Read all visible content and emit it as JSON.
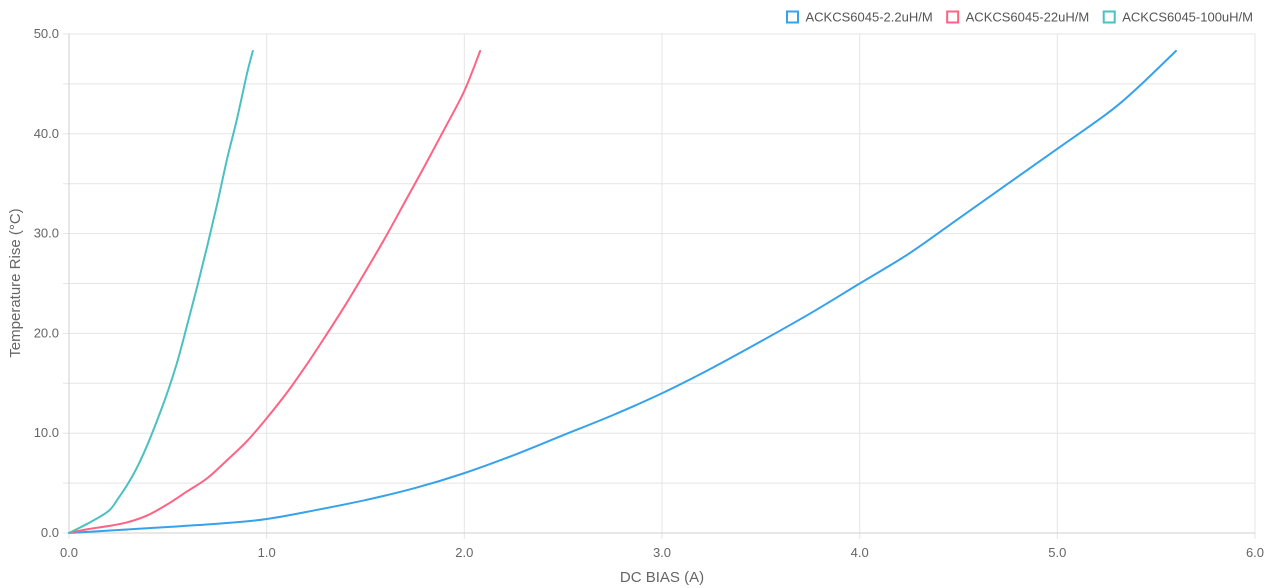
{
  "chart_data": {
    "type": "line",
    "title": "",
    "xlabel": "DC BIAS (A)",
    "ylabel": "Temperature Rise (°C)",
    "xlim": [
      0,
      6
    ],
    "ylim": [
      0,
      50
    ],
    "x_ticks": [
      "0.0",
      "1.0",
      "2.0",
      "3.0",
      "4.0",
      "5.0",
      "6.0"
    ],
    "y_ticks": [
      "0.0",
      "10.0",
      "20.0",
      "30.0",
      "40.0",
      "50.0"
    ],
    "grid": true,
    "legend_position": "top-right",
    "series": [
      {
        "name": "ACKCS6045-2.2uH/M",
        "color": "#36a2eb",
        "points": [
          [
            0,
            0
          ],
          [
            0.25,
            0.3
          ],
          [
            0.5,
            0.6
          ],
          [
            0.8,
            1.0
          ],
          [
            1.0,
            1.4
          ],
          [
            1.25,
            2.3
          ],
          [
            1.5,
            3.3
          ],
          [
            1.75,
            4.5
          ],
          [
            2.0,
            6.0
          ],
          [
            2.25,
            7.8
          ],
          [
            2.5,
            9.8
          ],
          [
            2.75,
            11.8
          ],
          [
            3.0,
            14.0
          ],
          [
            3.25,
            16.5
          ],
          [
            3.5,
            19.2
          ],
          [
            3.75,
            22.0
          ],
          [
            4.0,
            25.0
          ],
          [
            4.25,
            28.0
          ],
          [
            4.5,
            31.5
          ],
          [
            4.75,
            35.0
          ],
          [
            5.0,
            38.5
          ],
          [
            5.25,
            42.0
          ],
          [
            5.4,
            44.5
          ],
          [
            5.6,
            48.3
          ]
        ]
      },
      {
        "name": "ACKCS6045-22uH/M",
        "color": "#ff6384",
        "points": [
          [
            0,
            0
          ],
          [
            0.1,
            0.4
          ],
          [
            0.2,
            0.7
          ],
          [
            0.3,
            1.1
          ],
          [
            0.4,
            1.8
          ],
          [
            0.5,
            2.9
          ],
          [
            0.6,
            4.2
          ],
          [
            0.7,
            5.5
          ],
          [
            0.8,
            7.3
          ],
          [
            0.9,
            9.2
          ],
          [
            1.0,
            11.5
          ],
          [
            1.1,
            14.0
          ],
          [
            1.2,
            16.8
          ],
          [
            1.3,
            19.8
          ],
          [
            1.4,
            22.9
          ],
          [
            1.5,
            26.2
          ],
          [
            1.6,
            29.6
          ],
          [
            1.7,
            33.2
          ],
          [
            1.8,
            36.8
          ],
          [
            1.9,
            40.5
          ],
          [
            2.0,
            44.3
          ],
          [
            2.08,
            48.3
          ]
        ]
      },
      {
        "name": "ACKCS6045-100uH/M",
        "color": "#4bc0c0",
        "points": [
          [
            0,
            0
          ],
          [
            0.1,
            1.0
          ],
          [
            0.2,
            2.2
          ],
          [
            0.25,
            3.5
          ],
          [
            0.3,
            5.0
          ],
          [
            0.35,
            6.8
          ],
          [
            0.4,
            9.0
          ],
          [
            0.45,
            11.5
          ],
          [
            0.5,
            14.2
          ],
          [
            0.55,
            17.3
          ],
          [
            0.6,
            21.0
          ],
          [
            0.65,
            24.8
          ],
          [
            0.7,
            28.8
          ],
          [
            0.75,
            33.0
          ],
          [
            0.8,
            37.5
          ],
          [
            0.85,
            41.5
          ],
          [
            0.9,
            46.0
          ],
          [
            0.93,
            48.3
          ]
        ]
      }
    ]
  }
}
